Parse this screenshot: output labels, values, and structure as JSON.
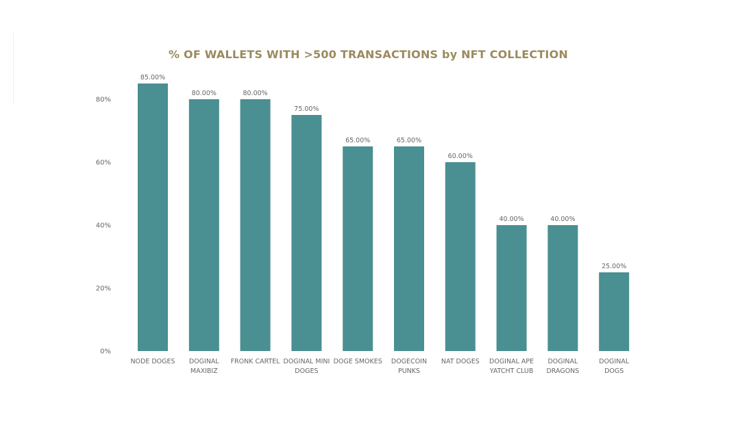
{
  "chart_data": {
    "type": "bar",
    "title": "% OF WALLETS WITH >500 TRANSACTIONS by NFT COLLECTION",
    "categories": [
      [
        "NODE DOGES"
      ],
      [
        "DOGINAL",
        "MAXIBIZ"
      ],
      [
        "FRONK CARTEL"
      ],
      [
        "DOGINAL MINI",
        "DOGES"
      ],
      [
        "DOGE SMOKES"
      ],
      [
        "DOGECOIN",
        "PUNKS"
      ],
      [
        "NAT DOGES"
      ],
      [
        "DOGINAL APE",
        "YATCHT CLUB"
      ],
      [
        "DOGINAL",
        "DRAGONS"
      ],
      [
        "DOGINAL",
        "DOGS"
      ]
    ],
    "values": [
      85,
      80,
      80,
      75,
      65,
      65,
      60,
      40,
      40,
      25
    ],
    "data_labels": [
      "85.00%",
      "80.00%",
      "80.00%",
      "75.00%",
      "65.00%",
      "65.00%",
      "60.00%",
      "40.00%",
      "40.00%",
      "25.00%"
    ],
    "yticks": [
      0,
      20,
      40,
      60,
      80
    ],
    "ytick_labels": [
      "0%",
      "20%",
      "40%",
      "60%",
      "80%"
    ],
    "ylim": [
      0,
      80
    ],
    "xlabel": "",
    "ylabel": "",
    "grid": false,
    "legend": "none",
    "bar_color": "#4a8f91",
    "title_color": "#9a8a5e"
  }
}
